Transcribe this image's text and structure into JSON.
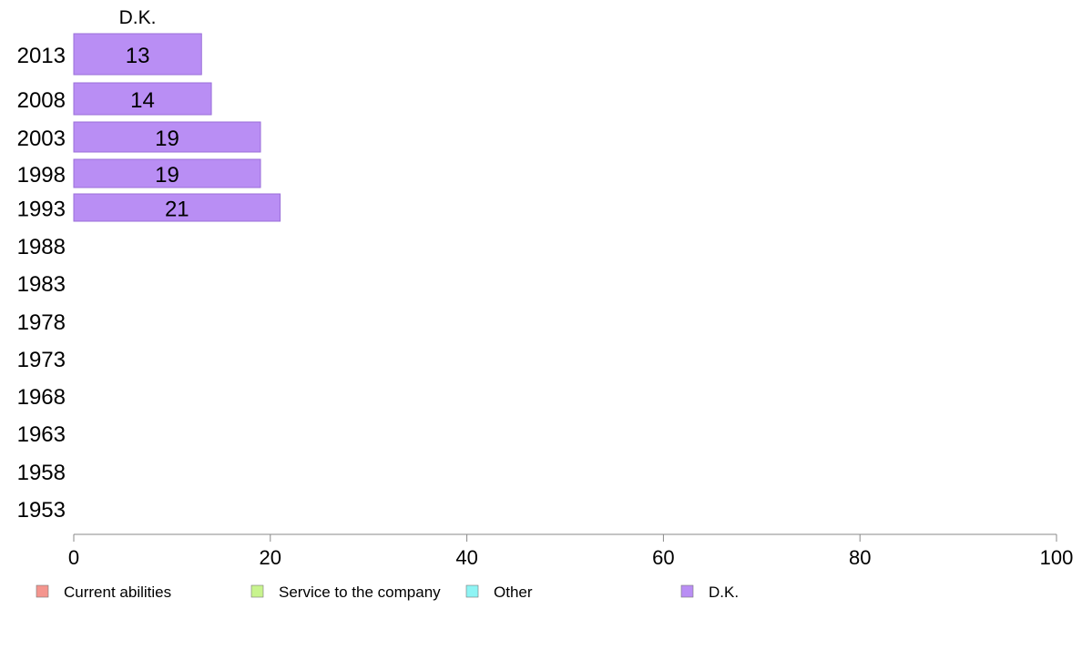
{
  "chart_data": {
    "type": "bar",
    "orientation": "horizontal",
    "stacked": true,
    "categories": [
      "2013",
      "2008",
      "2003",
      "1998",
      "1993",
      "1988",
      "1983",
      "1978",
      "1973",
      "1968",
      "1963",
      "1958",
      "1953"
    ],
    "series": [
      {
        "name": "Current abilities",
        "color": "#f4958e",
        "values": [
          null,
          null,
          null,
          null,
          null,
          null,
          null,
          null,
          null,
          null,
          null,
          null,
          null
        ]
      },
      {
        "name": "Service to the company",
        "color": "#c8f48e",
        "values": [
          null,
          null,
          null,
          null,
          null,
          null,
          null,
          null,
          null,
          null,
          null,
          null,
          null
        ]
      },
      {
        "name": "Other",
        "color": "#8ef4f4",
        "values": [
          null,
          null,
          null,
          null,
          null,
          null,
          null,
          null,
          null,
          null,
          null,
          null,
          null
        ]
      },
      {
        "name": "D.K.",
        "color": "#b98ef4",
        "values": [
          13,
          14,
          19,
          19,
          21,
          null,
          null,
          null,
          null,
          null,
          null,
          null,
          null
        ]
      }
    ],
    "series_title": "D.K.",
    "xlim": [
      0,
      100
    ],
    "xticks": [
      0,
      20,
      40,
      60,
      80,
      100
    ],
    "grid": false,
    "legend_position": "bottom"
  }
}
